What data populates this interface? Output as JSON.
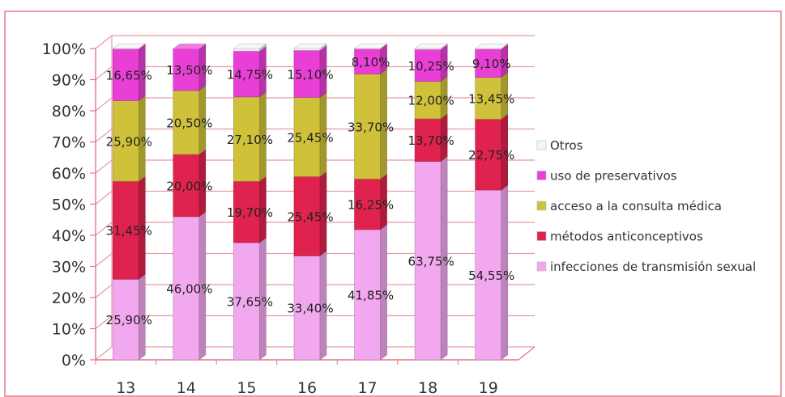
{
  "chart_data": {
    "type": "bar",
    "stacked": true,
    "three_d": true,
    "categories": [
      "13",
      "14",
      "15",
      "16",
      "17",
      "18",
      "19"
    ],
    "series": [
      {
        "name": "infecciones de transmisión sexual",
        "color": "#f2a8ee",
        "values": [
          25.9,
          46.0,
          37.65,
          33.4,
          41.85,
          63.75,
          54.55
        ],
        "labels": [
          "25,90%",
          "46,00%",
          "37,65%",
          "33,40%",
          "41,85%",
          "63,75%",
          "54,55%"
        ]
      },
      {
        "name": "métodos anticonceptivos",
        "color": "#e0234e",
        "values": [
          31.45,
          20.0,
          19.7,
          25.45,
          16.25,
          13.7,
          22.75
        ],
        "labels": [
          "31,45%",
          "20,00%",
          "19,70%",
          "25,45%",
          "16,25%",
          "13,70%",
          "22,75%"
        ]
      },
      {
        "name": "acceso a la consulta médica",
        "color": "#cfc23a",
        "values": [
          25.9,
          20.5,
          27.1,
          25.45,
          33.7,
          12.0,
          13.45
        ],
        "labels": [
          "25,90%",
          "20,50%",
          "27,10%",
          "25,45%",
          "33,70%",
          "12,00%",
          "13,45%"
        ]
      },
      {
        "name": "uso de preservativos",
        "color": "#ea3fd6",
        "values": [
          16.65,
          13.5,
          14.75,
          15.1,
          8.1,
          10.25,
          9.1
        ],
        "labels": [
          "16,65%",
          "13,50%",
          "14,75%",
          "15,10%",
          "8,10%",
          "10,25%",
          "9,10%"
        ]
      },
      {
        "name": "Otros",
        "color": "#f4f4f4",
        "values": [
          0.1,
          0.0,
          0.75,
          0.6,
          0.1,
          0.3,
          0.1
        ],
        "labels": [
          "",
          "",
          "",
          "",
          "",
          "",
          ""
        ]
      }
    ],
    "legend_order": [
      "Otros",
      "uso de preservativos",
      "acceso a la consulta médica",
      "métodos anticonceptivos",
      "infecciones de transmisión sexual"
    ],
    "yticks": [
      "0%",
      "10%",
      "20%",
      "30%",
      "40%",
      "50%",
      "60%",
      "70%",
      "80%",
      "90%",
      "100%"
    ],
    "ylim": [
      0,
      100
    ],
    "grid": true,
    "legend_position": "right",
    "colors": {
      "grid": "#e89aa4",
      "axis": "#e07482",
      "frame": "#e57a86"
    }
  }
}
